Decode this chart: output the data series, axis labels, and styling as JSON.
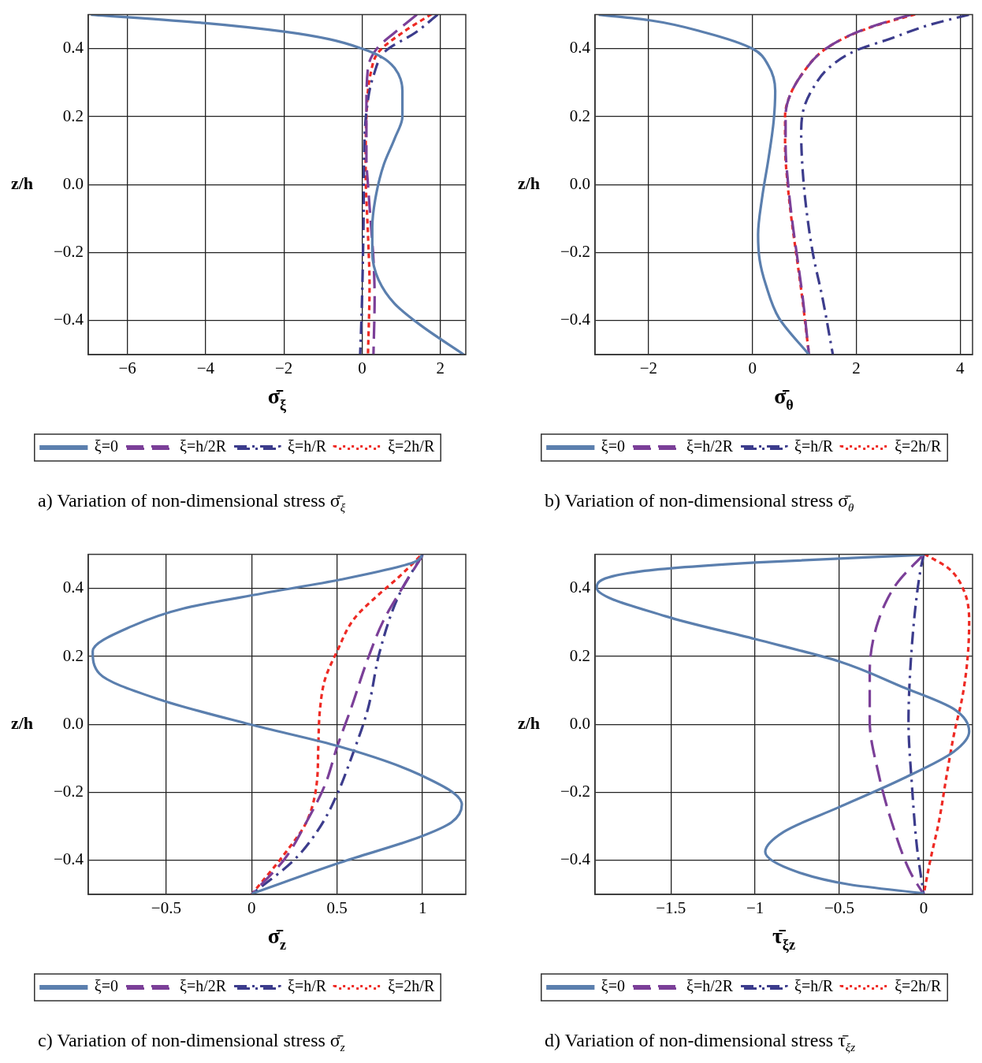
{
  "chart_data": [
    {
      "type": "line",
      "xlabel": "σ̄$_{ξ}$",
      "ylabel": "z/h",
      "annotations": [
        "a) Variation of non-dimensional stress σ̄$_{ξ}$"
      ],
      "xlim": [
        -7,
        2.65
      ],
      "ylim": [
        -0.5,
        0.5
      ],
      "xticks": [
        {
          "value": -6,
          "label": "−6"
        },
        {
          "value": -4,
          "label": "−4"
        },
        {
          "value": -2,
          "label": "−2"
        },
        {
          "value": 0,
          "label": "0"
        },
        {
          "value": 2,
          "label": "2"
        }
      ],
      "yticks": [
        {
          "value": -0.4,
          "label": "−0.4"
        },
        {
          "value": -0.2,
          "label": "−0.2"
        },
        {
          "value": 0,
          "label": "0.0"
        },
        {
          "value": 0.2,
          "label": "0.2"
        },
        {
          "value": 0.4,
          "label": "0.4"
        }
      ],
      "grid": true,
      "legend": "bottom",
      "series": [
        {
          "name": "ξ=0",
          "color": "#5b7fae",
          "line_style": "solid",
          "x": [
            -6.93,
            -4.0,
            -1.99,
            -0.85,
            0,
            0.49,
            0.83,
            1.03,
            1.03,
            0.83,
            0.56,
            0.36,
            0.26,
            0.26,
            0.42,
            0.83,
            1.5,
            2.6
          ],
          "values": [
            0.5,
            0.475,
            0.45,
            0.428,
            0.4,
            0.376,
            0.343,
            0.276,
            0.2,
            0.135,
            0.061,
            -0.028,
            -0.125,
            -0.2,
            -0.28,
            -0.35,
            -0.414,
            -0.5
          ]
        },
        {
          "name": "ξ=h/2R",
          "color": "#7b3f98",
          "line_style": "dashed",
          "x": [
            1.4,
            0.83,
            0.39,
            0.15,
            0.11,
            0.11,
            0.15,
            0.22,
            0.29,
            0.32,
            0.29
          ],
          "values": [
            0.5,
            0.447,
            0.402,
            0.343,
            0.224,
            0.076,
            0,
            -0.11,
            -0.22,
            -0.333,
            -0.5
          ]
        },
        {
          "name": "ξ=h/R",
          "color": "#3c3c8c",
          "line_style": "dashdot",
          "x": [
            1.93,
            1.36,
            0.62,
            0.29,
            0.12,
            0.05,
            0.04,
            0.02,
            -0.01,
            -0.05
          ],
          "values": [
            0.5,
            0.447,
            0.395,
            0.32,
            0.224,
            0.076,
            -0.073,
            -0.22,
            -0.37,
            -0.5
          ]
        },
        {
          "name": "ξ=2h/R",
          "color": "#ee2a24",
          "line_style": "dotted",
          "x": [
            1.75,
            1.03,
            0.42,
            0.22,
            0.12,
            0.09,
            0.15,
            0.19,
            0.15
          ],
          "values": [
            0.5,
            0.447,
            0.39,
            0.328,
            0.224,
            0.039,
            -0.147,
            -0.295,
            -0.5
          ]
        }
      ]
    },
    {
      "type": "line",
      "xlabel": "σ̄$_{θ}$",
      "ylabel": "z/h",
      "annotations": [
        "b) Variation of non-dimensional stress σ̄$_{θ}$"
      ],
      "xlim": [
        -3.03,
        4.24
      ],
      "ylim": [
        -0.5,
        0.5
      ],
      "xticks": [
        {
          "value": -2,
          "label": "−2"
        },
        {
          "value": 0,
          "label": "0"
        },
        {
          "value": 2,
          "label": "2"
        },
        {
          "value": 4,
          "label": "4"
        }
      ],
      "yticks": [
        {
          "value": -0.4,
          "label": "−0.4"
        },
        {
          "value": -0.2,
          "label": "−0.2"
        },
        {
          "value": 0,
          "label": "0.0"
        },
        {
          "value": 0.2,
          "label": "0.2"
        },
        {
          "value": 0.4,
          "label": "0.4"
        }
      ],
      "grid": true,
      "legend": "bottom",
      "series": [
        {
          "name": "ξ=0",
          "color": "#5b7fae",
          "line_style": "solid",
          "x": [
            -2.96,
            -2.0,
            -0.9,
            0,
            0.31,
            0.44,
            0.41,
            0.31,
            0.19,
            0.11,
            0.14,
            0.26,
            0.51,
            1.09
          ],
          "values": [
            0.5,
            0.484,
            0.447,
            0.4,
            0.35,
            0.276,
            0.187,
            0.076,
            -0.036,
            -0.147,
            -0.221,
            -0.295,
            -0.392,
            -0.5
          ]
        },
        {
          "name": "ξ=h/2R",
          "color": "#7b3f98",
          "line_style": "dashed",
          "x": [
            3.05,
            2.38,
            1.87,
            1.37,
            0.97,
            0.72,
            0.64,
            0.64,
            0.69,
            0.77,
            0.87,
            0.97,
            1.09
          ],
          "values": [
            0.5,
            0.469,
            0.439,
            0.395,
            0.328,
            0.261,
            0.202,
            0.113,
            0,
            -0.11,
            -0.22,
            -0.333,
            -0.5
          ]
        },
        {
          "name": "ξ=h/R",
          "color": "#3c3c8c",
          "line_style": "dashdot",
          "x": [
            4.17,
            3.39,
            2.63,
            2.0,
            1.47,
            1.17,
            0.99,
            0.94,
            0.97,
            1.04,
            1.17,
            1.35,
            1.55
          ],
          "values": [
            0.5,
            0.469,
            0.428,
            0.395,
            0.343,
            0.284,
            0.224,
            0.15,
            0.039,
            -0.073,
            -0.206,
            -0.333,
            -0.5
          ]
        },
        {
          "name": "ξ=2h/R",
          "color": "#ee2a24",
          "line_style": "dotted",
          "x": [
            3.11,
            2.4,
            1.88,
            1.37,
            0.97,
            0.72,
            0.63,
            0.63,
            0.68,
            0.76,
            0.86,
            0.96,
            1.09
          ],
          "values": [
            0.5,
            0.469,
            0.439,
            0.395,
            0.328,
            0.261,
            0.202,
            0.113,
            0,
            -0.11,
            -0.22,
            -0.333,
            -0.5
          ]
        }
      ]
    },
    {
      "type": "line",
      "xlabel": "σ̄$_{z}$",
      "ylabel": "z/h",
      "annotations": [
        "c) Variation of non-dimensional stress σ̄$_{z}$"
      ],
      "xlim": [
        -0.956,
        1.253
      ],
      "ylim": [
        -0.5,
        0.5
      ],
      "xticks": [
        {
          "value": -0.5,
          "label": "−0.5"
        },
        {
          "value": 0,
          "label": "0"
        },
        {
          "value": 0.5,
          "label": "0.5"
        },
        {
          "value": 1,
          "label": "1"
        }
      ],
      "yticks": [
        {
          "value": -0.4,
          "label": "−0.4"
        },
        {
          "value": -0.2,
          "label": "−0.2"
        },
        {
          "value": 0,
          "label": "0.0"
        },
        {
          "value": 0.2,
          "label": "0.2"
        },
        {
          "value": 0.4,
          "label": "0.4"
        }
      ],
      "grid": true,
      "legend": "bottom",
      "series": [
        {
          "name": "ξ=0",
          "color": "#5b7fae",
          "line_style": "solid",
          "x": [
            1.0,
            0.95,
            0.52,
            0.06,
            -0.4,
            -0.7,
            -0.93,
            -0.89,
            -0.55,
            -0.01,
            0.52,
            0.98,
            1.23,
            1.17,
            0.98,
            0.52,
            0
          ],
          "values": [
            0.497,
            0.477,
            0.426,
            0.385,
            0.341,
            0.289,
            0.215,
            0.149,
            0.075,
            0,
            -0.066,
            -0.147,
            -0.236,
            -0.288,
            -0.332,
            -0.406,
            -0.498
          ]
        },
        {
          "name": "ξ=h/2R",
          "color": "#7b3f98",
          "line_style": "dashed",
          "x": [
            1,
            0.88,
            0.77,
            0.68,
            0.58,
            0.5,
            0.43,
            0.32,
            0.19,
            0
          ],
          "values": [
            0.497,
            0.4,
            0.304,
            0.193,
            0.045,
            -0.066,
            -0.177,
            -0.288,
            -0.398,
            -0.5
          ]
        },
        {
          "name": "ξ=h/R",
          "color": "#3c3c8c",
          "line_style": "dashdot",
          "x": [
            1,
            0.86,
            0.75,
            0.68,
            0.58,
            0.5,
            0.4,
            0.25,
            0
          ],
          "values": [
            0.5,
            0.378,
            0.215,
            0.045,
            -0.103,
            -0.206,
            -0.302,
            -0.398,
            -0.5
          ]
        },
        {
          "name": "ξ=2h/R",
          "color": "#ee2a24",
          "line_style": "dotted",
          "x": [
            0.98,
            0.86,
            0.75,
            0.6,
            0.5,
            0.43,
            0.4,
            0.39,
            0.38,
            0.32,
            0.2,
            0
          ],
          "values": [
            0.492,
            0.433,
            0.385,
            0.311,
            0.215,
            0.134,
            0.045,
            -0.066,
            -0.177,
            -0.288,
            -0.376,
            -0.5
          ]
        }
      ]
    },
    {
      "type": "line",
      "xlabel": "τ̄$_{ξz}$",
      "ylabel": "z/h",
      "annotations": [
        "d) Variation of non-dimensional stress τ̄$_{ξz}$"
      ],
      "xlim": [
        -1.95,
        0.29
      ],
      "ylim": [
        -0.5,
        0.5
      ],
      "xticks": [
        {
          "value": -1.5,
          "label": "−1.5"
        },
        {
          "value": -1,
          "label": "−1"
        },
        {
          "value": -0.5,
          "label": "−0.5"
        },
        {
          "value": 0,
          "label": "0"
        }
      ],
      "yticks": [
        {
          "value": -0.4,
          "label": "−0.4"
        },
        {
          "value": -0.2,
          "label": "−0.2"
        },
        {
          "value": 0,
          "label": "0.0"
        },
        {
          "value": 0.2,
          "label": "0.2"
        },
        {
          "value": 0.4,
          "label": "0.4"
        }
      ],
      "grid": true,
      "legend": "bottom",
      "series": [
        {
          "name": "ξ=0",
          "color": "#5b7fae",
          "line_style": "solid",
          "x": [
            0,
            -1.0,
            -1.68,
            -1.94,
            -1.53,
            -1.0,
            -0.5,
            -0.13,
            0.18,
            0.27,
            0.18,
            -0.13,
            -0.5,
            -0.83,
            -0.94,
            -0.75,
            -0.44,
            0
          ],
          "values": [
            0.499,
            0.476,
            0.45,
            0.402,
            0.318,
            0.251,
            0.185,
            0.111,
            0.045,
            -0.021,
            -0.08,
            -0.161,
            -0.243,
            -0.316,
            -0.375,
            -0.434,
            -0.471,
            -0.497
          ]
        },
        {
          "name": "ξ=h/2R",
          "color": "#7b3f98",
          "line_style": "dashed",
          "x": [
            0,
            -0.16,
            -0.27,
            -0.32,
            -0.32,
            -0.27,
            -0.19,
            -0.08,
            0
          ],
          "values": [
            0.5,
            0.414,
            0.303,
            0.156,
            0.008,
            -0.14,
            -0.287,
            -0.434,
            -0.5
          ]
        },
        {
          "name": "ξ=h/R",
          "color": "#3c3c8c",
          "line_style": "dashdot",
          "x": [
            0,
            -0.02,
            -0.05,
            -0.08,
            -0.09,
            -0.07,
            -0.04,
            0
          ],
          "values": [
            0.5,
            0.451,
            0.34,
            0.156,
            0.008,
            -0.176,
            -0.36,
            -0.5
          ]
        },
        {
          "name": "ξ=2h/R",
          "color": "#ee2a24",
          "line_style": "dotted",
          "x": [
            0.01,
            0.15,
            0.24,
            0.27,
            0.26,
            0.23,
            0.18,
            0.14,
            0.09,
            0.04,
            0
          ],
          "values": [
            0.5,
            0.458,
            0.392,
            0.303,
            0.192,
            0.082,
            -0.029,
            -0.139,
            -0.287,
            -0.398,
            -0.5
          ]
        }
      ]
    }
  ]
}
